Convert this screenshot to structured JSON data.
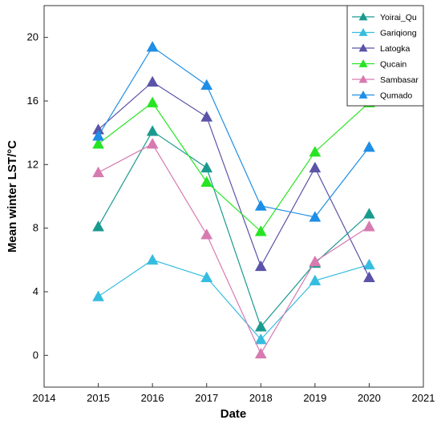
{
  "chart_data": {
    "type": "line",
    "xlabel": "Date",
    "ylabel": "Mean winter LST/°C",
    "xlim": [
      2014,
      2021
    ],
    "ylim": [
      -2,
      22
    ],
    "xticks": [
      "2014",
      "2015",
      "2016",
      "2017",
      "2018",
      "2019",
      "2020",
      "2021"
    ],
    "yticks": [
      "0",
      "4",
      "8",
      "12",
      "16",
      "20"
    ],
    "x": [
      2015,
      2016,
      2017,
      2018,
      2019,
      2020
    ],
    "grid": false,
    "legend_position": "top-right",
    "marker": "triangle",
    "series": [
      {
        "name": "Yoirai_Qu",
        "color": "#1a9a8f",
        "values": [
          8.1,
          14.1,
          11.8,
          1.8,
          5.8,
          8.9
        ]
      },
      {
        "name": "Gariqiong",
        "color": "#35bde0",
        "values": [
          3.7,
          6.0,
          4.9,
          1.0,
          4.7,
          5.7
        ]
      },
      {
        "name": "Latogka",
        "color": "#5a53a8",
        "values": [
          14.2,
          17.2,
          15.0,
          5.6,
          11.8,
          4.9
        ]
      },
      {
        "name": "Qucain",
        "color": "#27e522",
        "values": [
          13.3,
          15.9,
          10.9,
          7.8,
          12.8,
          15.9
        ]
      },
      {
        "name": "Sambasar",
        "color": "#d77ab0",
        "values": [
          11.5,
          13.3,
          7.6,
          0.1,
          5.9,
          8.1
        ]
      },
      {
        "name": "Qumado",
        "color": "#1e8ee6",
        "values": [
          13.8,
          19.4,
          17.0,
          9.4,
          8.7,
          13.1
        ]
      }
    ]
  }
}
